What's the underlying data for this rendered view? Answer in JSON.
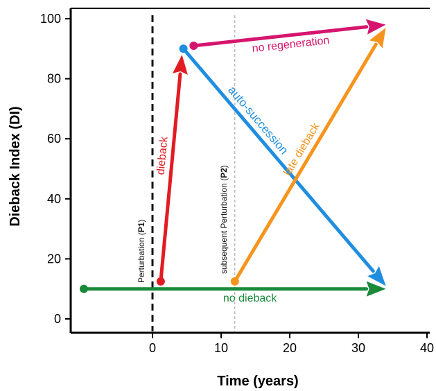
{
  "chart_data": {
    "type": "line",
    "xlabel": "Time (years)",
    "ylabel": "Dieback Index (DI)",
    "xlim": [
      -12,
      40
    ],
    "ylim": [
      -3,
      103
    ],
    "x_ticks": [
      0,
      10,
      20,
      30,
      40
    ],
    "y_ticks": [
      0,
      20,
      40,
      60,
      80,
      100
    ],
    "grid": false,
    "legend": "none",
    "vlines": [
      {
        "x": 0,
        "style": "dashed-bold",
        "color": "#111111",
        "label_prefix": "Perturbation (",
        "label_bold": "P1",
        "label_suffix": ")"
      },
      {
        "x": 12,
        "style": "dashed-thin",
        "color": "#9a9a9a",
        "label_prefix": "subsequent Perturbation (",
        "label_bold": "P2",
        "label_suffix": ")"
      }
    ],
    "series": [
      {
        "name": "no dieback",
        "color": "#1a8a3a",
        "start": [
          -10,
          10
        ],
        "end": [
          34,
          10
        ]
      },
      {
        "name": "dieback",
        "color": "#e31b23",
        "start": [
          1.2,
          12.5
        ],
        "end": [
          4.3,
          88
        ]
      },
      {
        "name": "auto-succession",
        "color": "#1f8ee0",
        "start": [
          4.5,
          90
        ],
        "end": [
          34,
          11
        ]
      },
      {
        "name": "no regeneration",
        "color": "#d6156e",
        "start": [
          6,
          91
        ],
        "end": [
          34,
          98
        ]
      },
      {
        "name": "late dieback",
        "color": "#f7941d",
        "start": [
          12,
          12.5
        ],
        "end": [
          34,
          97
        ]
      }
    ]
  }
}
